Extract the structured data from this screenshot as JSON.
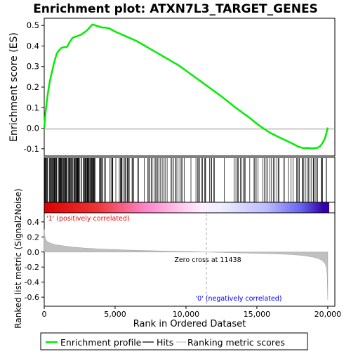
{
  "chart_data": {
    "type": "line",
    "title": "Enrichment plot: ATXN7L3_TARGET_GENES",
    "panels": {
      "enrichment": {
        "ylabel": "Enrichment score (ES)",
        "xlim": [
          0,
          20500
        ],
        "ylim": [
          -0.135,
          0.535
        ],
        "yticks": [
          -0.1,
          0.0,
          0.1,
          0.2,
          0.3,
          0.4,
          0.5
        ],
        "ytick_labels": [
          "-0.1",
          "0.0",
          "0.1",
          "0.2",
          "0.3",
          "0.4",
          "0.5"
        ],
        "series": [
          {
            "name": "Enrichment profile",
            "color": "#00ee00",
            "x": [
              0,
              100,
              200,
              300,
              400,
              500,
              600,
              700,
              800,
              900,
              1000,
              1200,
              1400,
              1600,
              1800,
              2000,
              2200,
              2400,
              2600,
              2800,
              3000,
              3200,
              3400,
              3550,
              3700,
              3900,
              4100,
              4300,
              4600,
              5000,
              5500,
              6000,
              6500,
              7000,
              7500,
              8000,
              8500,
              9000,
              9500,
              10000,
              10500,
              11000,
              11500,
              12000,
              12500,
              13000,
              13500,
              14000,
              14500,
              15000,
              15500,
              16000,
              16500,
              17000,
              17500,
              18000,
              18300,
              18600,
              18900,
              19100,
              19300,
              19500,
              19650,
              19800,
              19900,
              20000
            ],
            "y": [
              0.0,
              0.08,
              0.14,
              0.19,
              0.23,
              0.26,
              0.29,
              0.32,
              0.345,
              0.365,
              0.375,
              0.39,
              0.395,
              0.395,
              0.42,
              0.44,
              0.445,
              0.45,
              0.455,
              0.465,
              0.475,
              0.49,
              0.505,
              0.502,
              0.498,
              0.494,
              0.49,
              0.49,
              0.485,
              0.47,
              0.455,
              0.44,
              0.425,
              0.405,
              0.385,
              0.365,
              0.345,
              0.325,
              0.305,
              0.28,
              0.255,
              0.23,
              0.205,
              0.18,
              0.155,
              0.128,
              0.1,
              0.075,
              0.05,
              0.022,
              -0.003,
              -0.025,
              -0.042,
              -0.058,
              -0.075,
              -0.092,
              -0.097,
              -0.096,
              -0.098,
              -0.097,
              -0.095,
              -0.085,
              -0.07,
              -0.05,
              -0.025,
              0.003
            ]
          }
        ]
      },
      "hits": {
        "legend_label": "Hits",
        "dense_ranges": [
          [
            0,
            3700
          ],
          [
            3900,
            4900
          ],
          [
            5300,
            6800
          ],
          [
            7300,
            10000
          ],
          [
            10700,
            12200
          ],
          [
            13400,
            14200
          ],
          [
            14800,
            17000
          ],
          [
            17400,
            18000
          ],
          [
            18200,
            20000
          ]
        ],
        "sparse_gap_positions": [
          5050,
          7050,
          10350,
          12700,
          14500,
          17200
        ],
        "color_gradient": {
          "positive": "#dd0000",
          "mid": "#ffffff",
          "negative": "#0000dd",
          "dark_end": "#3300aa"
        }
      },
      "ranked_metric": {
        "ylabel": "Ranked list metric (Signal2Noise)",
        "xlabel": "Rank in Ordered Dataset",
        "xlim": [
          0,
          20500
        ],
        "ylim": [
          -0.72,
          0.52
        ],
        "xticks": [
          0,
          5000,
          10000,
          15000,
          20000
        ],
        "xtick_labels": [
          "0",
          "5,000",
          "10,000",
          "15,000",
          "20,000"
        ],
        "yticks": [
          -0.6,
          -0.4,
          -0.2,
          0.0,
          0.2,
          0.4
        ],
        "ytick_labels": [
          "-0.6",
          "-0.4",
          "-0.2",
          "0.0",
          "0.2",
          "0.4"
        ],
        "fill_color": "#c0c0c0",
        "x": [
          0,
          30,
          100,
          200,
          400,
          700,
          1000,
          2000,
          3000,
          4000,
          5000,
          6000,
          7000,
          8000,
          9000,
          10000,
          11000,
          11438,
          12000,
          13000,
          14000,
          15000,
          16000,
          17000,
          17500,
          18000,
          18500,
          19000,
          19300,
          19600,
          19800,
          19900,
          19960,
          20000
        ],
        "y": [
          0.3,
          0.22,
          0.17,
          0.14,
          0.12,
          0.1,
          0.09,
          0.065,
          0.05,
          0.04,
          0.032,
          0.025,
          0.02,
          0.015,
          0.01,
          0.006,
          0.002,
          0.0,
          -0.003,
          -0.008,
          -0.013,
          -0.018,
          -0.023,
          -0.03,
          -0.035,
          -0.042,
          -0.052,
          -0.068,
          -0.085,
          -0.11,
          -0.15,
          -0.2,
          -0.3,
          -0.64
        ],
        "zero_cross": 11438,
        "zero_cross_label": "Zero cross at 11438",
        "positive_label": "'1' (positively correlated)",
        "negative_label": "'0' (negatively correlated)",
        "positive_label_color": "#ff0000",
        "negative_label_color": "#0000ff"
      }
    },
    "legend": {
      "placement": "bottom",
      "items": [
        {
          "label": "Enrichment profile",
          "color": "#00ee00"
        },
        {
          "label": "Hits",
          "color": "#000000"
        },
        {
          "label": "Ranking metric scores",
          "color": "#c0c0c0"
        }
      ]
    }
  }
}
